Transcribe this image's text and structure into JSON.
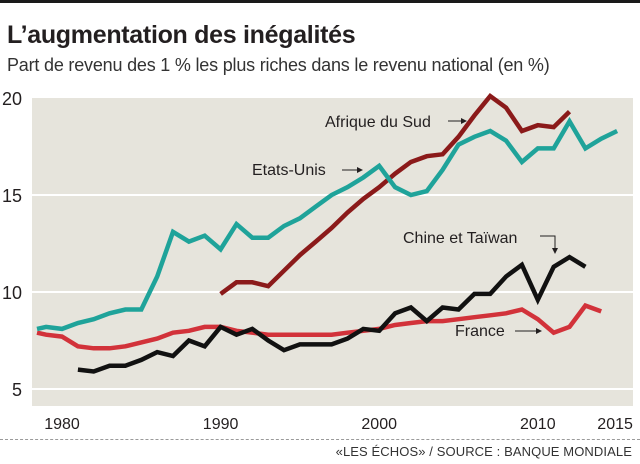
{
  "header": {
    "title": "L’augmentation des inégalités",
    "subtitle": "Part de revenu des 1 % les plus riches dans le revenu national (en %)"
  },
  "footer": {
    "source": "«LES ÉCHOS» / SOURCE : BANQUE MONDIALE"
  },
  "chart_data": {
    "type": "line",
    "title": "L’augmentation des inégalités",
    "subtitle": "Part de revenu des 1 % les plus riches dans le revenu national (en %)",
    "xlabel": "",
    "ylabel": "",
    "xlim": [
      1978,
      2015.5
    ],
    "ylim": [
      4,
      20.4
    ],
    "x_ticks": [
      1980,
      1990,
      2000,
      2010,
      2015
    ],
    "y_ticks": [
      5,
      10,
      15,
      20
    ],
    "grid": "horizontal",
    "legend": "inline-annotations",
    "series": [
      {
        "name": "Etats-Unis",
        "color": "#1fa39a",
        "x": [
          1978,
          1979,
          1980,
          1981,
          1982,
          1983,
          1984,
          1985,
          1986,
          1987,
          1988,
          1989,
          1990,
          1991,
          1992,
          1993,
          1994,
          1995,
          1996,
          1997,
          1998,
          1999,
          2000,
          2001,
          2002,
          2003,
          2004,
          2005,
          2006,
          2007,
          2008,
          2009,
          2010,
          2011,
          2012,
          2013,
          2014,
          2015
        ],
        "values": [
          8.1,
          8.2,
          8.1,
          8.4,
          8.6,
          8.9,
          9.1,
          9.1,
          10.8,
          13.1,
          12.6,
          12.9,
          12.2,
          13.5,
          12.8,
          12.8,
          13.4,
          13.8,
          14.4,
          15.0,
          15.4,
          15.9,
          16.5,
          15.4,
          15.0,
          15.2,
          16.3,
          17.6,
          18.0,
          18.3,
          17.8,
          16.7,
          17.4,
          17.4,
          18.8,
          17.4,
          17.9,
          18.3
        ]
      },
      {
        "name": "Afrique du Sud",
        "color": "#8b1a1a",
        "x": [
          1990,
          1991,
          1992,
          1993,
          1994,
          1995,
          1996,
          1997,
          1998,
          1999,
          2000,
          2001,
          2002,
          2003,
          2004,
          2005,
          2006,
          2007,
          2008,
          2009,
          2010,
          2011,
          2012
        ],
        "values": [
          9.9,
          10.5,
          10.5,
          10.3,
          11.1,
          11.9,
          12.6,
          13.3,
          14.1,
          14.8,
          15.4,
          16.1,
          16.7,
          17.0,
          17.1,
          18.0,
          19.1,
          20.1,
          19.5,
          18.3,
          18.6,
          18.5,
          19.3
        ]
      },
      {
        "name": "Chine et Taïwan",
        "color": "#111111",
        "x": [
          1981,
          1982,
          1983,
          1984,
          1985,
          1986,
          1987,
          1988,
          1989,
          1990,
          1991,
          1992,
          1993,
          1994,
          1995,
          1996,
          1997,
          1998,
          1999,
          2000,
          2001,
          2002,
          2003,
          2004,
          2005,
          2006,
          2007,
          2008,
          2009,
          2010,
          2011,
          2012,
          2013
        ],
        "values": [
          6.0,
          5.9,
          6.2,
          6.2,
          6.5,
          6.9,
          6.7,
          7.5,
          7.2,
          8.2,
          7.8,
          8.1,
          7.5,
          7.0,
          7.3,
          7.3,
          7.3,
          7.6,
          8.1,
          8.0,
          8.9,
          9.2,
          8.5,
          9.2,
          9.1,
          9.9,
          9.9,
          10.8,
          11.4,
          9.6,
          11.3,
          11.8,
          11.3
        ]
      },
      {
        "name": "France",
        "color": "#d2323a",
        "x": [
          1978,
          1979,
          1980,
          1981,
          1982,
          1983,
          1984,
          1985,
          1986,
          1987,
          1988,
          1989,
          1990,
          1991,
          1992,
          1993,
          1994,
          1995,
          1996,
          1997,
          1998,
          1999,
          2000,
          2001,
          2002,
          2003,
          2004,
          2005,
          2006,
          2007,
          2008,
          2009,
          2010,
          2011,
          2012,
          2013,
          2014
        ],
        "values": [
          7.9,
          7.8,
          7.7,
          7.2,
          7.1,
          7.1,
          7.2,
          7.4,
          7.6,
          7.9,
          8.0,
          8.2,
          8.2,
          8.0,
          7.9,
          7.8,
          7.8,
          7.8,
          7.8,
          7.8,
          7.9,
          8.0,
          8.1,
          8.3,
          8.4,
          8.5,
          8.5,
          8.6,
          8.7,
          8.8,
          8.9,
          9.1,
          8.6,
          7.9,
          8.2,
          9.3,
          9.0
        ]
      }
    ],
    "annotations": [
      {
        "text": "Afrique du Sud",
        "series": "Afrique du Sud",
        "arrow": "right"
      },
      {
        "text": "Etats-Unis",
        "series": "Etats-Unis",
        "arrow": "right"
      },
      {
        "text": "Chine et Taïwan",
        "series": "Chine et Taïwan",
        "arrow": "down"
      },
      {
        "text": "France",
        "series": "France",
        "arrow": "right"
      }
    ]
  }
}
